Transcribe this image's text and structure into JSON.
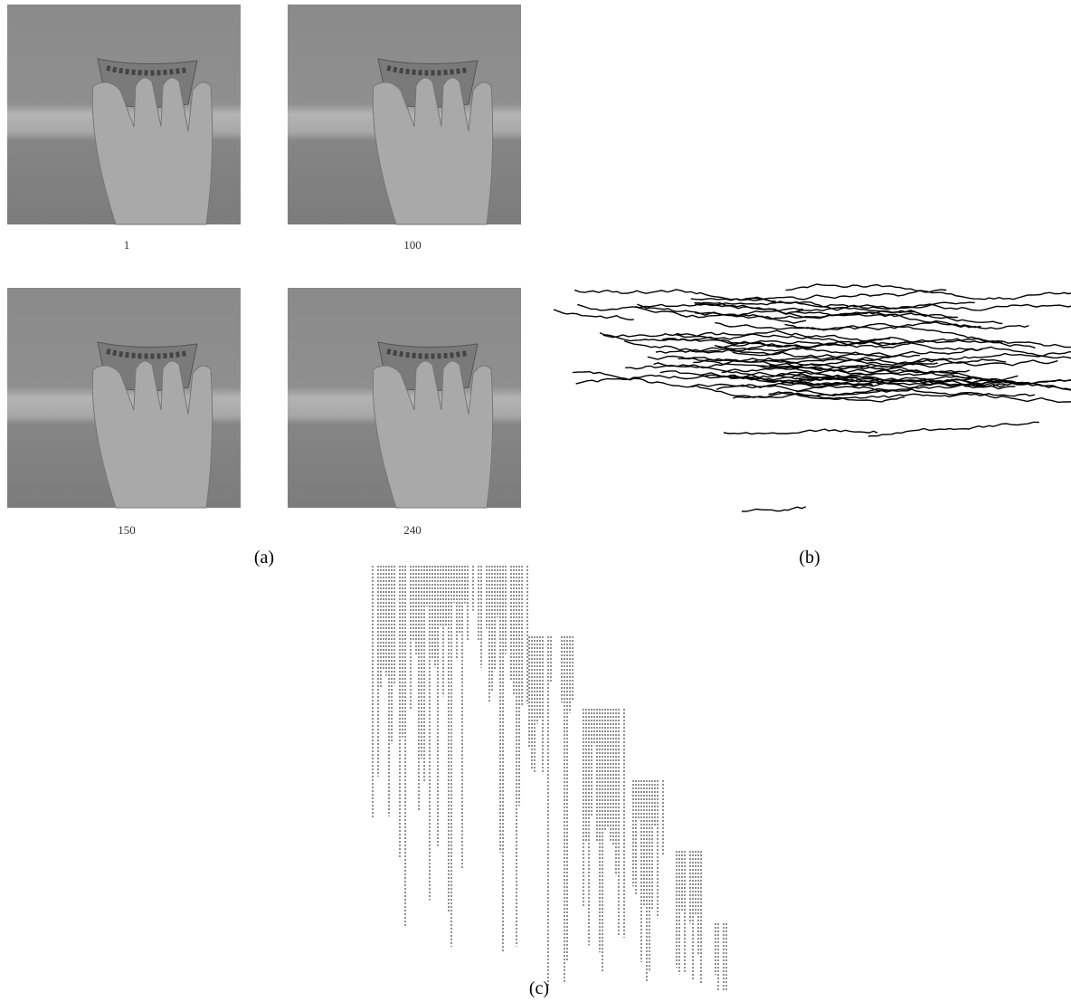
{
  "frames": [
    "1",
    "100",
    "150",
    "240"
  ],
  "captions": [
    "(a)",
    "(b)",
    "(c)"
  ]
}
